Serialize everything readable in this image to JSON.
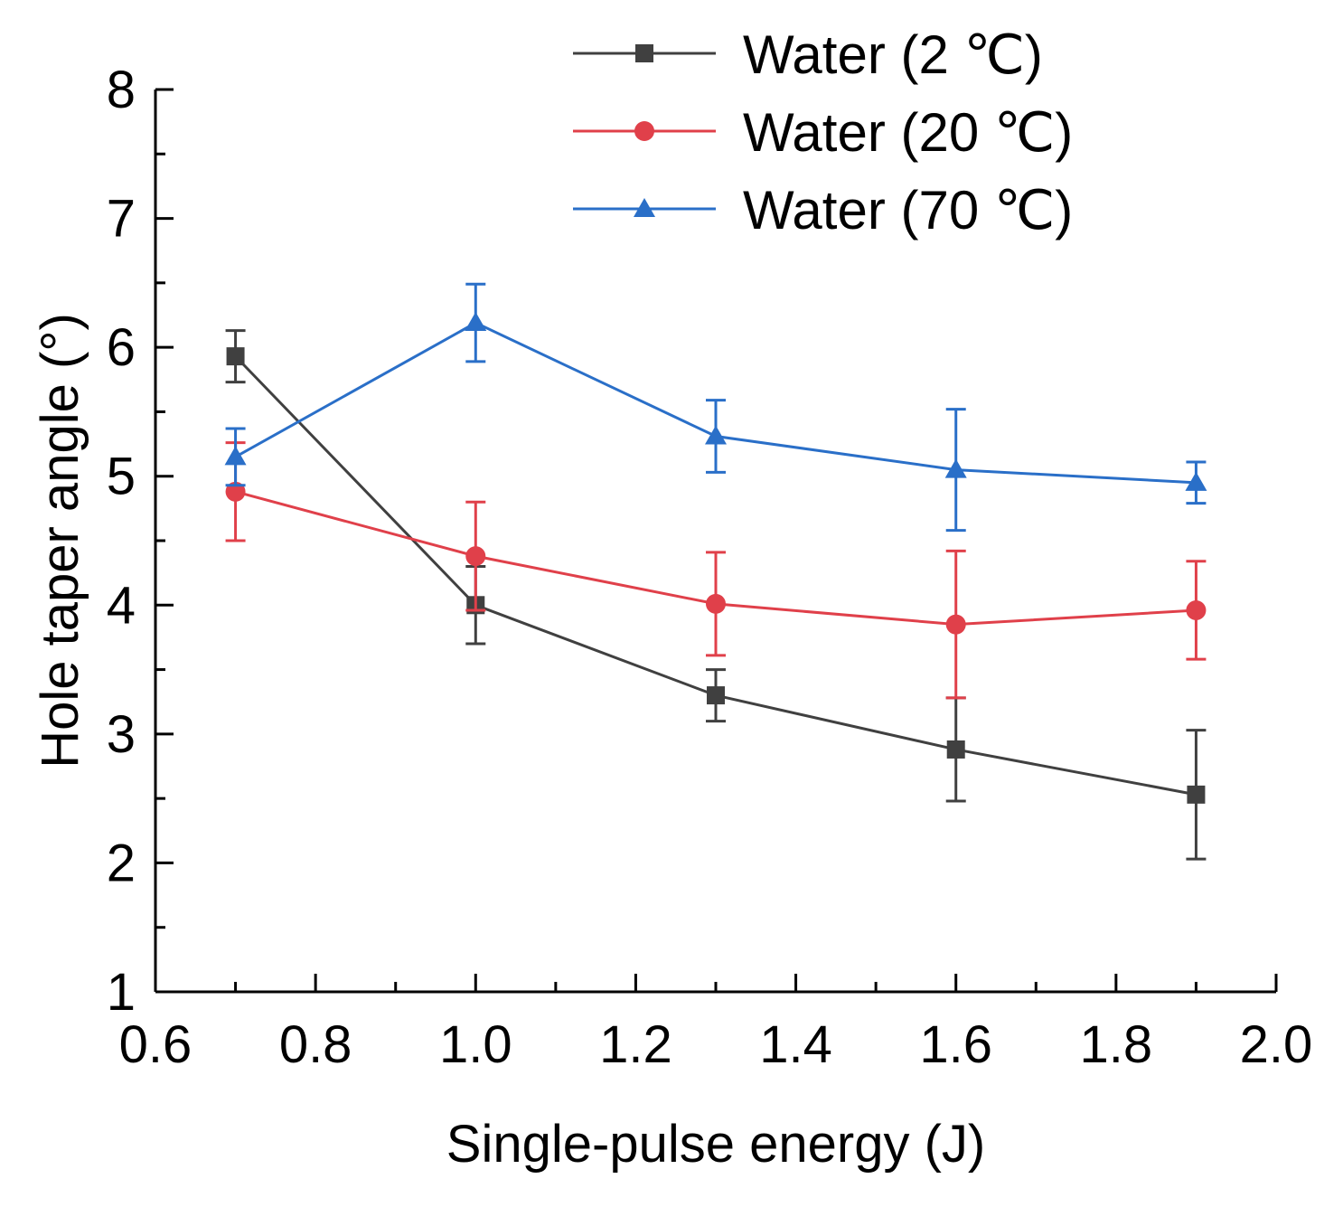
{
  "chart_data": {
    "type": "line",
    "title": "",
    "xlabel": "Single-pulse energy (J)",
    "ylabel": "Hole taper angle (°)",
    "xlim": [
      0.6,
      2.0
    ],
    "ylim": [
      1,
      8
    ],
    "x_ticks": [
      0.6,
      0.8,
      1.0,
      1.2,
      1.4,
      1.6,
      1.8,
      2.0
    ],
    "x_tick_labels": [
      "0.6",
      "0.8",
      "1.0",
      "1.2",
      "1.4",
      "1.6",
      "1.8",
      "2.0"
    ],
    "y_ticks": [
      1,
      2,
      3,
      4,
      5,
      6,
      7,
      8
    ],
    "y_tick_labels": [
      "1",
      "2",
      "3",
      "4",
      "5",
      "6",
      "7",
      "8"
    ],
    "grid": false,
    "legend_position": "top-right",
    "x": [
      0.7,
      1.0,
      1.3,
      1.6,
      1.9
    ],
    "series": [
      {
        "name": "Water (2 ℃)",
        "color": "#404040",
        "marker": "square",
        "values": [
          5.93,
          4.0,
          3.3,
          2.88,
          2.53
        ],
        "error": [
          0.2,
          0.3,
          0.2,
          0.4,
          0.5
        ]
      },
      {
        "name": "Water (20 ℃)",
        "color": "#e0404a",
        "marker": "circle",
        "values": [
          4.88,
          4.38,
          4.01,
          3.85,
          3.96
        ],
        "error": [
          0.38,
          0.42,
          0.4,
          0.57,
          0.38
        ]
      },
      {
        "name": "Water (70 ℃)",
        "color": "#2a6fc8",
        "marker": "triangle",
        "values": [
          5.15,
          6.19,
          5.31,
          5.05,
          4.95
        ],
        "error": [
          0.22,
          0.3,
          0.28,
          0.47,
          0.16
        ]
      }
    ]
  }
}
